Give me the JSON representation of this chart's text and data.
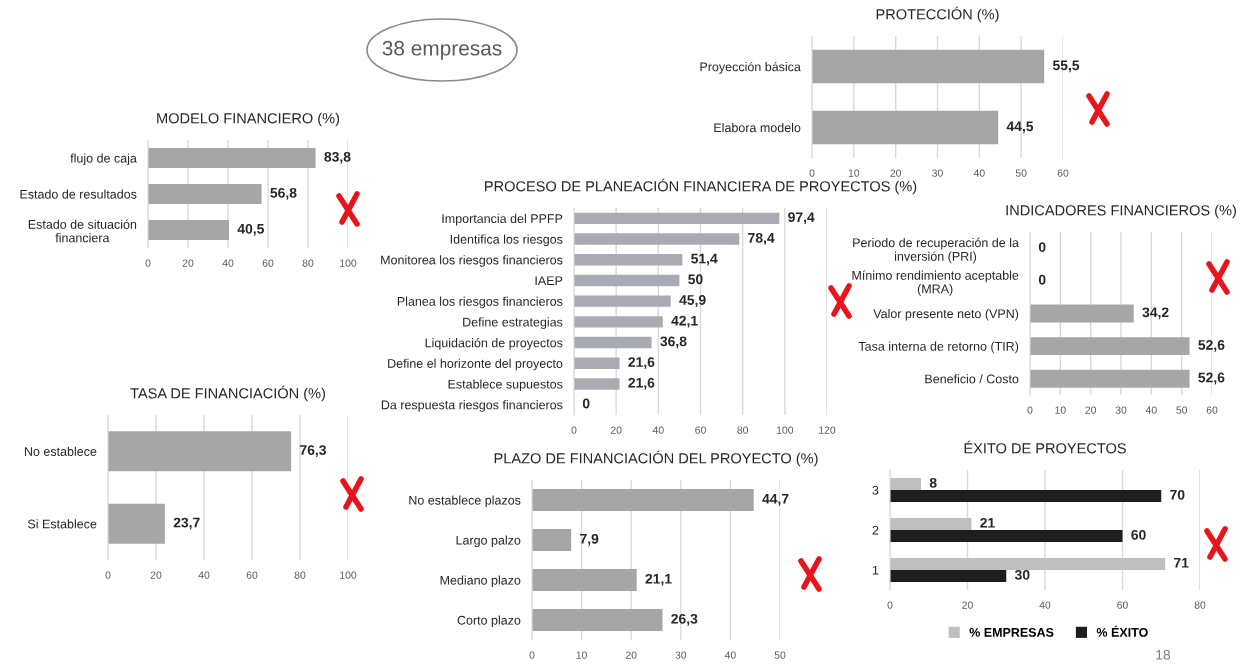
{
  "chart_data": [
    {
      "type": "bar",
      "orientation": "horizontal",
      "title": "PROTECCIÓN (%)",
      "categories": [
        "Proyección básica",
        "Elabora modelo"
      ],
      "values": [
        55.5,
        44.5
      ],
      "value_labels": [
        "55,5",
        "44,5"
      ],
      "color": "#a6a6a6",
      "xlim": [
        0,
        60
      ],
      "xticks": [
        0,
        10,
        20,
        30,
        40,
        50,
        60
      ],
      "grid": "x"
    },
    {
      "type": "bar",
      "orientation": "horizontal",
      "title": "MODELO FINANCIERO (%)",
      "categories": [
        "flujo de caja",
        "Estado de resultados",
        "Estado de situación\nfinanciera"
      ],
      "values": [
        83.8,
        56.8,
        40.5
      ],
      "value_labels": [
        "83,8",
        "56,8",
        "40,5"
      ],
      "color": "#a6a6a6",
      "xlim": [
        0,
        100
      ],
      "xticks": [
        0,
        20,
        40,
        60,
        80,
        100
      ],
      "grid": "x"
    },
    {
      "type": "bar",
      "orientation": "horizontal",
      "title": "PROCESO DE PLANEACIÓN FINANCIERA DE PROYECTOS (%)",
      "categories": [
        "Importancia del PPFP",
        "Identifica los riesgos",
        "Monitorea los riesgos financieros",
        "IAEP",
        "Planea los riesgos financieros",
        "Define estrategias",
        "Liquidación de proyectos",
        "Define el horizonte del proyecto",
        "Establece supuestos",
        "Da respuesta riesgos financieros"
      ],
      "values": [
        97.4,
        78.4,
        51.4,
        50,
        45.9,
        42.1,
        36.8,
        21.6,
        21.6,
        0
      ],
      "value_labels": [
        "97,4",
        "78,4",
        "51,4",
        "50",
        "45,9",
        "42,1",
        "36,8",
        "21,6",
        "21,6",
        "0"
      ],
      "color": "#a9abb3",
      "xlim": [
        0,
        120
      ],
      "xticks": [
        0,
        20,
        40,
        60,
        80,
        100,
        120
      ],
      "grid": "x"
    },
    {
      "type": "bar",
      "orientation": "horizontal",
      "title": "INDICADORES FINANCIEROS (%)",
      "categories": [
        "Periodo de recuperación de la\ninversión (PRI)",
        "Mínimo rendimiento aceptable\n(MRA)",
        "Valor presente neto (VPN)",
        "Tasa interna de retorno (TIR)",
        "Beneficio / Costo"
      ],
      "values": [
        0,
        0,
        34.2,
        52.6,
        52.6
      ],
      "value_labels": [
        "0",
        "0",
        "34,2",
        "52,6",
        "52,6"
      ],
      "color": "#a6a6a6",
      "xlim": [
        0,
        60
      ],
      "xticks": [
        0,
        10,
        20,
        30,
        40,
        50,
        60
      ],
      "grid": "x"
    },
    {
      "type": "bar",
      "orientation": "horizontal",
      "title": "TASA DE FINANCIACIÓN (%)",
      "categories": [
        "No establece",
        "Si Establece"
      ],
      "values": [
        76.3,
        23.7
      ],
      "value_labels": [
        "76,3",
        "23,7"
      ],
      "color": "#a6a6a6",
      "xlim": [
        0,
        100
      ],
      "xticks": [
        0,
        20,
        40,
        60,
        80,
        100
      ],
      "grid": "x"
    },
    {
      "type": "bar",
      "orientation": "horizontal",
      "title": "PLAZO DE FINANCIACIÓN DEL PROYECTO (%)",
      "categories": [
        "No establece plazos",
        "Largo palzo",
        "Mediano plazo",
        "Corto plazo"
      ],
      "values": [
        44.7,
        7.9,
        21.1,
        26.3
      ],
      "value_labels": [
        "44,7",
        "7,9",
        "21,1",
        "26,3"
      ],
      "color": "#a6a6a6",
      "xlim": [
        0,
        50
      ],
      "xticks": [
        0,
        10,
        20,
        30,
        40,
        50
      ],
      "grid": "x"
    },
    {
      "type": "bar",
      "orientation": "horizontal",
      "title": "ÉXITO DE PROYECTOS",
      "categories": [
        "3",
        "2",
        "1"
      ],
      "series": [
        {
          "name": "% EMPRESAS",
          "color": "#bfbfbf",
          "values": [
            8,
            21,
            71
          ]
        },
        {
          "name": "% ÉXITO",
          "color": "#1e1e1e",
          "values": [
            70,
            60,
            30
          ]
        }
      ],
      "data_labels": true,
      "legend": "bottom",
      "xlim": [
        0,
        80
      ],
      "xticks": [
        0,
        20,
        40,
        60,
        80
      ],
      "grid": "x"
    },
    {
      "type": "other",
      "title": "38 empresas",
      "annotations": [
        "18"
      ]
    }
  ]
}
